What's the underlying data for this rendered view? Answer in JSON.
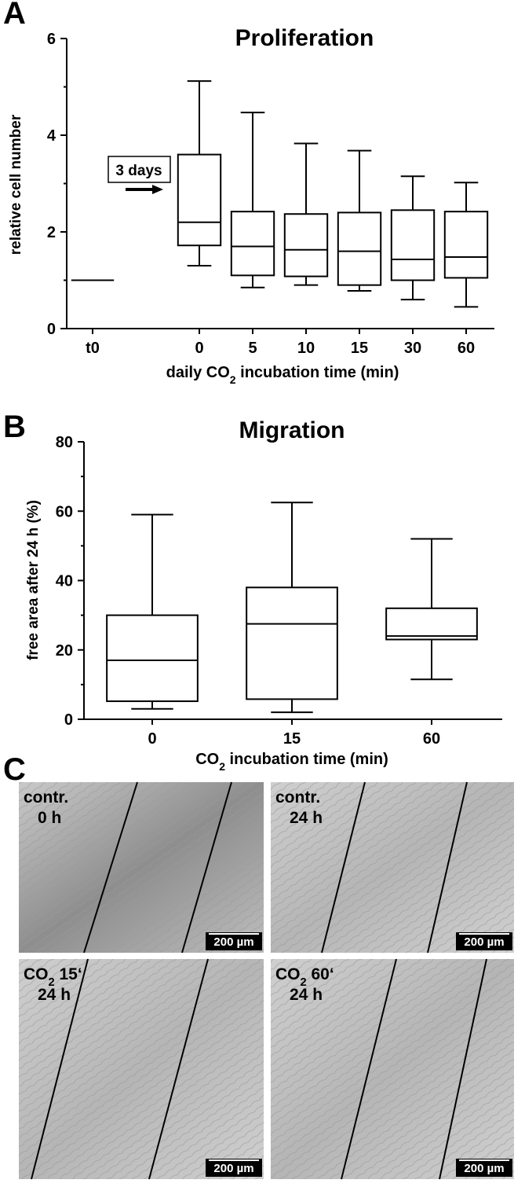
{
  "chart_data": [
    {
      "type": "box",
      "panel": "A",
      "title": "Proliferation",
      "ylabel": "relative cell number",
      "xlabel": [
        "daily CO",
        "2",
        " incubation time (min)"
      ],
      "annotation": "3 days",
      "categories": [
        "t0",
        null,
        "0",
        "5",
        "10",
        "15",
        "30",
        "60"
      ],
      "boxes": {
        "min": [
          1,
          null,
          1.3,
          0.85,
          0.9,
          0.78,
          0.6,
          0.45
        ],
        "q1": [
          1,
          null,
          1.72,
          1.1,
          1.08,
          0.9,
          1.0,
          1.05
        ],
        "median": [
          1,
          null,
          2.2,
          1.7,
          1.63,
          1.6,
          1.43,
          1.48
        ],
        "q3": [
          1,
          null,
          3.6,
          2.42,
          2.37,
          2.4,
          2.45,
          2.42
        ],
        "max": [
          1,
          null,
          5.12,
          4.47,
          3.83,
          3.68,
          3.15,
          3.02
        ]
      },
      "color": "#000000",
      "ylim": [
        0,
        6
      ],
      "yticks": [
        0,
        2,
        4,
        6
      ],
      "yminor": [
        1,
        3,
        5
      ]
    },
    {
      "type": "box",
      "panel": "B",
      "title": "Migration",
      "ylabel": "free area after 24 h (%)",
      "xlabel": [
        "CO",
        "2",
        " incubation time (min)"
      ],
      "categories": [
        "0",
        "15",
        "60"
      ],
      "boxes": {
        "min": [
          3,
          2,
          11.5
        ],
        "q1": [
          5.2,
          5.8,
          23
        ],
        "median": [
          17,
          27.5,
          24
        ],
        "q3": [
          30,
          38,
          32
        ],
        "max": [
          59,
          62.5,
          52
        ]
      },
      "color": "#000000",
      "ylim": [
        0,
        80
      ],
      "yticks": [
        0,
        20,
        40,
        60,
        80
      ],
      "yminor": [
        10,
        30,
        50,
        70
      ]
    }
  ],
  "panel_c": {
    "panel": "C",
    "images": [
      {
        "label": [
          [
            "contr."
          ],
          [
            "0 h"
          ]
        ],
        "scale": "200 µm"
      },
      {
        "label": [
          [
            "contr."
          ],
          [
            "24 h"
          ]
        ],
        "scale": "200 µm"
      },
      {
        "label": [
          [
            "CO",
            "2",
            " 15‘"
          ],
          [
            "24 h"
          ]
        ],
        "scale": "200 µm"
      },
      {
        "label": [
          [
            "CO",
            "2",
            " 60‘"
          ],
          [
            "24 h"
          ]
        ],
        "scale": "200 µm"
      }
    ]
  }
}
